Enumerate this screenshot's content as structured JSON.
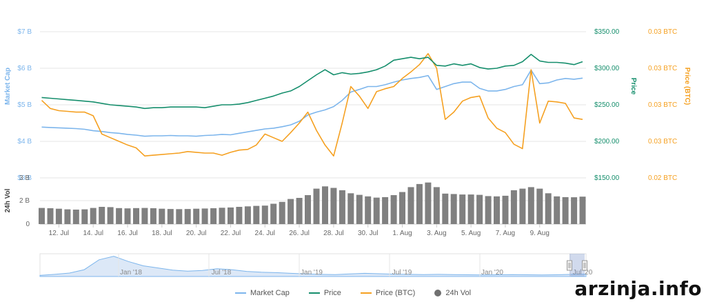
{
  "chart_data": {
    "type": "line",
    "legend_position": "bottom",
    "grid": true,
    "colors": {
      "market_cap": "#7cb5ec",
      "price": "#158e6c",
      "price_btc": "#f5a020",
      "volume": "#808080",
      "navigator_fill": "#dce8f7",
      "grid": "#e6e6e6"
    },
    "x_ticks": [
      "12. Jul",
      "14. Jul",
      "16. Jul",
      "18. Jul",
      "20. Jul",
      "22. Jul",
      "24. Jul",
      "26. Jul",
      "28. Jul",
      "30. Jul",
      "1. Aug",
      "3. Aug",
      "5. Aug",
      "7. Aug",
      "9. Aug"
    ],
    "left_axis": {
      "title": "Market Cap",
      "ticks": [
        "$7 B",
        "$6 B",
        "$5 B",
        "$4 B",
        "$3 B"
      ],
      "ylim": [
        3,
        7
      ]
    },
    "right_axis_1": {
      "title": "Price",
      "ticks": [
        "$350.00",
        "$300.00",
        "$250.00",
        "$200.00",
        "$150.00"
      ],
      "ylim": [
        150,
        350
      ]
    },
    "right_axis_2": {
      "title": "Price (BTC)",
      "ticks": [
        "0.03 BTC",
        "0.03 BTC",
        "0.03 BTC",
        "0.03 BTC",
        "0.02 BTC"
      ]
    },
    "volume_axis": {
      "title": "24h Vol",
      "ticks": [
        "3 B",
        "2 B",
        "0"
      ],
      "ylim": [
        0,
        3
      ]
    },
    "x_days": [
      0,
      0.5,
      1,
      1.5,
      2,
      2.5,
      3,
      3.5,
      4,
      4.5,
      5,
      5.5,
      6,
      6.5,
      7,
      7.5,
      8,
      8.5,
      9,
      9.5,
      10,
      10.5,
      11,
      11.5,
      12,
      12.5,
      13,
      13.5,
      14,
      14.5,
      15,
      15.5,
      16,
      16.5,
      17,
      17.5,
      18,
      18.5,
      19,
      19.5,
      20,
      20.5,
      21,
      21.5,
      22,
      22.5,
      23,
      23.5,
      24,
      24.5,
      25,
      25.5,
      26,
      26.5,
      27,
      27.5,
      28,
      28.5,
      29,
      29.5,
      30,
      30.5,
      31,
      31.5
    ],
    "series": [
      {
        "name": "Market Cap",
        "axis": "left",
        "values": [
          4.39,
          4.38,
          4.37,
          4.36,
          4.35,
          4.33,
          4.29,
          4.27,
          4.24,
          4.22,
          4.19,
          4.17,
          4.14,
          4.15,
          4.15,
          4.16,
          4.15,
          4.15,
          4.14,
          4.16,
          4.17,
          4.19,
          4.18,
          4.22,
          4.26,
          4.3,
          4.34,
          4.36,
          4.4,
          4.45,
          4.55,
          4.72,
          4.8,
          4.86,
          4.95,
          5.12,
          5.35,
          5.42,
          5.5,
          5.5,
          5.55,
          5.62,
          5.68,
          5.72,
          5.75,
          5.8,
          5.42,
          5.5,
          5.58,
          5.62,
          5.62,
          5.45,
          5.38,
          5.38,
          5.42,
          5.5,
          5.55,
          5.95,
          5.58,
          5.6,
          5.68,
          5.72,
          5.7,
          5.73
        ]
      },
      {
        "name": "Price",
        "axis": "right_1",
        "values": [
          260,
          259,
          258,
          257,
          256,
          255,
          254,
          252,
          250,
          249,
          248,
          247,
          245,
          246,
          246,
          247,
          247,
          247,
          247,
          246,
          248,
          250,
          250,
          251,
          253,
          256,
          259,
          262,
          266,
          269,
          275,
          283,
          291,
          298,
          291,
          294,
          292,
          293,
          295,
          298,
          303,
          311,
          313,
          315,
          313,
          315,
          304,
          303,
          306,
          304,
          306,
          301,
          299,
          300,
          303,
          304,
          309,
          319,
          310,
          308,
          308,
          307,
          305,
          309
        ]
      },
      {
        "name": "Price (BTC)",
        "axis": "right_2",
        "values": [
          256,
          245,
          242,
          241,
          240,
          240,
          235,
          210,
          205,
          200,
          195,
          191,
          180,
          181,
          182,
          183,
          184,
          186,
          185,
          184,
          184,
          181,
          185,
          188,
          189,
          195,
          210,
          205,
          200,
          212,
          225,
          240,
          215,
          195,
          180,
          225,
          275,
          262,
          245,
          268,
          272,
          275,
          286,
          295,
          305,
          320,
          300,
          230,
          240,
          255,
          260,
          262,
          232,
          218,
          212,
          196,
          190,
          298,
          225,
          255,
          254,
          252,
          232,
          230
        ]
      },
      {
        "name": "24h Vol",
        "axis": "volume",
        "type": "bar",
        "values": [
          1.05,
          1.03,
          1.0,
          0.96,
          0.94,
          0.96,
          1.05,
          1.12,
          1.1,
          1.04,
          1.02,
          1.04,
          1.05,
          1.03,
          1.0,
          0.98,
          0.97,
          0.98,
          1.0,
          1.01,
          1.03,
          1.06,
          1.08,
          1.12,
          1.15,
          1.18,
          1.2,
          1.32,
          1.44,
          1.63,
          1.7,
          1.88,
          2.3,
          2.45,
          2.35,
          2.2,
          2.0,
          1.9,
          1.8,
          1.72,
          1.75,
          1.88,
          2.08,
          2.4,
          2.6,
          2.7,
          2.4,
          1.98,
          1.95,
          1.92,
          1.92,
          1.9,
          1.82,
          1.8,
          1.84,
          2.2,
          2.3,
          2.4,
          2.3,
          2.0,
          1.8,
          1.75,
          1.74,
          1.78
        ]
      }
    ],
    "navigator": {
      "ticks": [
        "Jan '18",
        "Jul '18",
        "Jan '19",
        "Jul '19",
        "Jan '20",
        "Jul '20"
      ],
      "values": [
        0.5,
        1.0,
        1.6,
        3.2,
        7.8,
        9.5,
        7.0,
        5.0,
        4.0,
        3.0,
        2.5,
        2.8,
        3.6,
        3.2,
        2.4,
        2.0,
        1.8,
        1.5,
        1.2,
        1.0,
        0.9,
        1.2,
        1.5,
        1.3,
        1.1,
        1.0,
        0.9,
        1.0,
        0.9,
        0.8,
        0.7,
        0.8,
        0.9,
        0.8,
        0.7,
        0.8,
        1.0,
        1.1
      ]
    }
  },
  "legend": {
    "market_cap": "Market Cap",
    "price": "Price",
    "price_btc": "Price (BTC)",
    "volume": "24h Vol"
  },
  "watermark": "arzinja.info"
}
